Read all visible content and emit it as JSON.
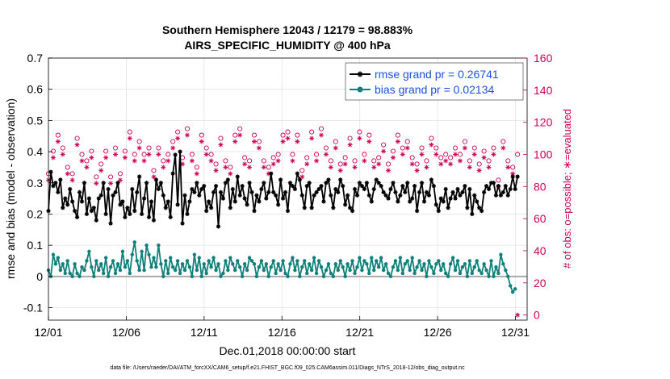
{
  "chart_data": {
    "type": "line",
    "title": "Southern Hemisphere 12043 / 12179 = 98.883%",
    "subtitle": "AIRS_SPECIFIC_HUMIDITY @ 400 hPa",
    "xlabel": "Dec.01,2018 00:00:00 start",
    "ylabel": "rmse and bias (model - observation)",
    "ylabel_right": "# of obs: o=possible; ∗=evaluated",
    "xlim": [
      0,
      30.75
    ],
    "ylim": [
      -0.14,
      0.7
    ],
    "ylim_right": [
      -3.2,
      160
    ],
    "x_ticks": [
      0,
      5,
      10,
      15,
      20,
      25,
      30
    ],
    "x_tick_labels": [
      "12/01",
      "12/06",
      "12/11",
      "12/16",
      "12/21",
      "12/26",
      "12/31"
    ],
    "y_ticks": [
      -0.1,
      0,
      0.1,
      0.2,
      0.3,
      0.4,
      0.5,
      0.6,
      0.7
    ],
    "y_tick_labels": [
      "-0.1",
      "0",
      "0.1",
      "0.2",
      "0.3",
      "0.4",
      "0.5",
      "0.6",
      "0.7"
    ],
    "y_ticks_right": [
      0,
      20,
      40,
      60,
      80,
      100,
      120,
      140,
      160
    ],
    "y_tick_labels_right": [
      "0",
      "20",
      "40",
      "60",
      "80",
      "100",
      "120",
      "140",
      "160"
    ],
    "grid": true,
    "legend_position": "top-right",
    "footnote": "data file: /Users/raeder/DAI/ATM_forcXX/CAM6_setup/f.e21.FHIST_BGC.f09_025.CAM6assim.011/Diags_NTrS_2018-12/obs_diag_output.nc",
    "series": [
      {
        "name": "rmse grand pr = 0.26741",
        "axis": "left",
        "color": "#000000",
        "marker": "asterisk-line",
        "values": [
          0.21,
          0.335,
          0.29,
          0.3,
          0.27,
          0.31,
          0.22,
          0.25,
          0.23,
          0.28,
          0.24,
          0.21,
          0.19,
          0.27,
          0.24,
          0.3,
          0.2,
          0.25,
          0.21,
          0.22,
          0.18,
          0.25,
          0.26,
          0.3,
          0.2,
          0.28,
          0.17,
          0.26,
          0.27,
          0.3,
          0.23,
          0.24,
          0.19,
          0.22,
          0.2,
          0.28,
          0.21,
          0.27,
          0.32,
          0.2,
          0.25,
          0.3,
          0.19,
          0.24,
          0.18,
          0.31,
          0.28,
          0.3,
          0.26,
          0.22,
          0.24,
          0.19,
          0.33,
          0.39,
          0.23,
          0.4,
          0.17,
          0.26,
          0.2,
          0.24,
          0.28,
          0.27,
          0.3,
          0.26,
          0.28,
          0.29,
          0.21,
          0.24,
          0.22,
          0.27,
          0.29,
          0.16,
          0.27,
          0.25,
          0.3,
          0.31,
          0.22,
          0.28,
          0.24,
          0.32,
          0.26,
          0.29,
          0.25,
          0.23,
          0.3,
          0.27,
          0.21,
          0.26,
          0.24,
          0.28,
          0.3,
          0.25,
          0.27,
          0.33,
          0.27,
          0.26,
          0.23,
          0.31,
          0.25,
          0.27,
          0.21,
          0.3,
          0.29,
          0.28,
          0.33,
          0.31,
          0.26,
          0.22,
          0.29,
          0.3,
          0.22,
          0.26,
          0.27,
          0.28,
          0.29,
          0.24,
          0.3,
          0.31,
          0.26,
          0.22,
          0.28,
          0.27,
          0.31,
          0.29,
          0.23,
          0.26,
          0.22,
          0.21,
          0.28,
          0.26,
          0.3,
          0.29,
          0.28,
          0.3,
          0.26,
          0.24,
          0.28,
          0.31,
          0.3,
          0.29,
          0.27,
          0.26,
          0.25,
          0.28,
          0.3,
          0.27,
          0.24,
          0.26,
          0.29,
          0.27,
          0.3,
          0.24,
          0.25,
          0.29,
          0.21,
          0.27,
          0.3,
          0.24,
          0.27,
          0.26,
          0.31,
          0.29,
          0.23,
          0.21,
          0.25,
          0.24,
          0.28,
          0.22,
          0.25,
          0.27,
          0.25,
          0.28,
          0.26,
          0.27,
          0.29,
          0.22,
          0.28,
          0.2,
          0.26,
          0.24,
          0.22,
          0.21,
          0.27,
          0.29,
          0.28,
          0.3,
          0.3,
          0.26,
          0.29,
          0.26,
          0.27,
          0.29,
          0.26,
          0.28,
          0.32,
          0.28,
          0.32
        ]
      },
      {
        "name": "bias grand pr = 0.02134",
        "axis": "left",
        "color": "#11807a",
        "marker": "dot-line",
        "values": [
          0.02,
          0.0,
          0.07,
          0.04,
          0.06,
          0.02,
          0.04,
          0.01,
          0.05,
          0.01,
          0.0,
          0.04,
          0.01,
          0.0,
          0.03,
          0.02,
          0.05,
          0.08,
          0.03,
          0.0,
          0.05,
          0.02,
          0.04,
          0.01,
          0.06,
          0.0,
          0.03,
          0.05,
          0.01,
          0.04,
          0.02,
          0.08,
          0.03,
          0.05,
          0.01,
          0.07,
          0.11,
          0.05,
          0.02,
          0.08,
          0.02,
          0.1,
          0.07,
          0.03,
          0.06,
          0.03,
          0.1,
          0.04,
          0.0,
          0.05,
          0.01,
          0.06,
          0.03,
          0.02,
          0.05,
          0.01,
          0.04,
          0.02,
          0.05,
          0.03,
          0.0,
          0.07,
          0.02,
          0.06,
          0.0,
          0.04,
          0.01,
          0.05,
          0.03,
          0.06,
          0.02,
          0.04,
          0.0,
          0.01,
          0.05,
          0.02,
          0.06,
          0.04,
          0.02,
          0.05,
          0.03,
          0.0,
          0.04,
          0.02,
          0.06,
          0.05,
          0.04,
          0.0,
          0.03,
          0.05,
          0.02,
          0.04,
          0.0,
          0.03,
          0.05,
          0.01,
          0.04,
          0.02,
          0.05,
          0.01,
          0.0,
          0.04,
          0.06,
          0.02,
          0.05,
          0.0,
          0.03,
          0.05,
          0.01,
          0.04,
          0.02,
          0.06,
          0.01,
          0.05,
          0.03,
          0.0,
          0.02,
          0.04,
          0.01,
          0.0,
          0.04,
          0.02,
          0.05,
          0.03,
          0.0,
          0.04,
          0.02,
          0.05,
          0.01,
          0.03,
          0.06,
          0.02,
          0.05,
          0.04,
          0.01,
          0.06,
          0.02,
          0.05,
          0.03,
          0.06,
          0.02,
          0.04,
          0.01,
          0.0,
          0.03,
          0.05,
          0.02,
          0.06,
          0.01,
          0.04,
          0.05,
          0.02,
          0.06,
          0.01,
          0.03,
          0.05,
          0.02,
          0.04,
          0.0,
          0.05,
          0.03,
          0.01,
          0.04,
          0.05,
          0.02,
          0.04,
          0.01,
          0.0,
          0.04,
          0.06,
          0.02,
          0.05,
          0.01,
          0.03,
          0.04,
          0.0,
          0.05,
          0.01,
          0.03,
          0.05,
          0.02,
          0.01,
          0.04,
          0.02,
          0.0,
          0.05,
          0.0,
          0.03,
          0.01,
          0.07,
          0.04,
          0.02,
          0.0,
          -0.03,
          -0.05,
          -0.04
        ]
      },
      {
        "name": "obs possible",
        "axis": "right",
        "color": "#cc0055",
        "marker": "circle",
        "values": [
          88,
          90,
          102,
          88,
          112,
          110,
          104,
          98,
          92,
          102,
          88,
          98,
          110,
          92,
          100,
          122,
          96,
          88,
          102,
          94,
          86,
          118,
          94,
          90,
          102,
          112,
          86,
          98,
          104,
          100,
          88,
          96,
          102,
          106,
          114,
          90,
          100,
          92,
          108,
          94,
          100,
          120,
          104,
          92,
          90,
          110,
          104,
          98,
          96,
          112,
          100,
          94,
          108,
          118,
          114,
          104,
          98,
          88,
          116,
          110,
          100,
          94,
          92,
          102,
          112,
          98,
          104,
          96,
          100,
          88,
          94,
          102,
          110,
          100,
          96,
          104,
          92,
          106,
          112,
          100,
          116,
          104,
          98,
          108,
          96,
          94,
          112,
          100,
          108,
          102,
          96,
          110,
          92,
          104,
          98,
          116,
          100,
          94,
          112,
          96,
          114,
          108,
          100,
          96,
          112,
          104,
          90,
          94,
          98,
          108,
          114,
          96,
          100,
          102,
          116,
          98,
          104,
          100,
          96,
          112,
          108,
          100,
          94,
          104,
          98,
          106,
          110,
          100,
          96,
          108,
          114,
          104,
          100,
          92,
          112,
          100,
          96,
          104,
          98,
          110,
          106,
          100,
          94,
          108,
          102,
          96,
          112,
          100,
          104,
          96,
          108,
          110,
          98,
          100,
          94,
          112,
          104,
          100,
          96,
          108,
          110,
          96,
          104,
          100,
          98,
          92,
          100,
          106,
          98,
          94,
          104,
          110,
          100,
          96,
          108,
          102,
          96,
          112,
          104,
          100,
          94,
          108,
          102,
          100,
          96,
          114,
          104,
          98,
          84,
          100,
          108,
          102,
          96,
          104,
          92,
          98,
          100
        ]
      },
      {
        "name": "obs evaluated",
        "axis": "right",
        "color": "#cc0055",
        "marker": "asterisk",
        "values": [
          84,
          86,
          98,
          84,
          108,
          106,
          100,
          94,
          88,
          98,
          84,
          94,
          106,
          88,
          96,
          118,
          92,
          84,
          98,
          90,
          82,
          114,
          90,
          86,
          98,
          108,
          82,
          94,
          100,
          96,
          84,
          92,
          98,
          102,
          110,
          86,
          96,
          88,
          104,
          90,
          96,
          116,
          100,
          88,
          86,
          106,
          100,
          94,
          92,
          108,
          96,
          90,
          104,
          114,
          110,
          100,
          94,
          84,
          112,
          106,
          96,
          90,
          88,
          98,
          108,
          94,
          100,
          92,
          96,
          84,
          90,
          98,
          106,
          96,
          92,
          100,
          88,
          102,
          108,
          96,
          112,
          100,
          94,
          104,
          92,
          90,
          108,
          96,
          104,
          98,
          92,
          106,
          88,
          100,
          94,
          112,
          96,
          90,
          108,
          92,
          110,
          104,
          96,
          92,
          108,
          100,
          86,
          90,
          94,
          104,
          110,
          92,
          96,
          98,
          112,
          94,
          100,
          96,
          92,
          108,
          104,
          96,
          90,
          100,
          94,
          102,
          106,
          96,
          92,
          104,
          110,
          100,
          96,
          88,
          108,
          96,
          92,
          100,
          94,
          106,
          102,
          96,
          90,
          104,
          98,
          92,
          108,
          96,
          100,
          92,
          104,
          106,
          94,
          96,
          90,
          108,
          100,
          96,
          92,
          104,
          106,
          92,
          100,
          96,
          94,
          88,
          96,
          102,
          94,
          90,
          100,
          106,
          96,
          92,
          104,
          98,
          92,
          108,
          100,
          96,
          90,
          104,
          98,
          96,
          92,
          110,
          100,
          94,
          80,
          96,
          104,
          98,
          92,
          100,
          88,
          94,
          0
        ]
      }
    ]
  }
}
